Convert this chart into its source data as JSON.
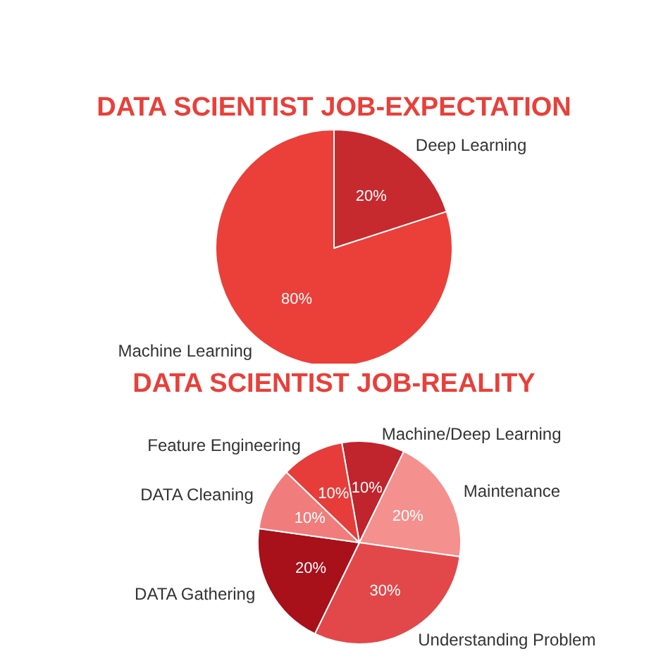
{
  "chart_data": [
    {
      "type": "pie",
      "title": "DATA SCIENTIST JOB-EXPECTATION",
      "categories": [
        "Machine Learning",
        "Deep Learning"
      ],
      "values": [
        80,
        20
      ],
      "value_labels": [
        "80%",
        "20%"
      ],
      "colors": [
        "#ea4039",
        "#c62a2e"
      ],
      "legend": false
    },
    {
      "type": "pie",
      "title": "DATA SCIENTIST JOB-REALITY",
      "categories": [
        "Machine/Deep Learning",
        "Maintenance",
        "Understanding Problem",
        "DATA Gathering",
        "DATA Cleaning",
        "Feature Engineering"
      ],
      "values": [
        10,
        20,
        30,
        20,
        10,
        10
      ],
      "value_labels": [
        "10%",
        "20%",
        "30%",
        "20%",
        "10%",
        "10%"
      ],
      "colors": [
        "#c0242c",
        "#f4908e",
        "#e2484a",
        "#a8101a",
        "#f07d7b",
        "#e63d3a"
      ],
      "legend": false
    }
  ]
}
